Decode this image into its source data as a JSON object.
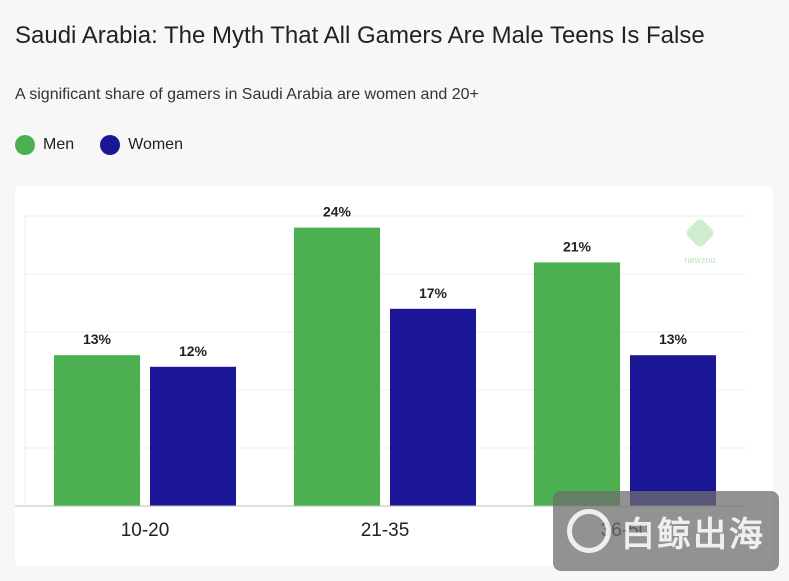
{
  "header": {
    "title": "Saudi Arabia: The Myth That All Gamers Are Male Teens Is False",
    "subtitle": "A significant share of gamers in Saudi Arabia are women and 20+"
  },
  "legend": {
    "items": [
      {
        "label": "Men",
        "color": "#4caf50"
      },
      {
        "label": "Women",
        "color": "#1b1696"
      }
    ]
  },
  "logo": {
    "text": "newzoo"
  },
  "watermark": {
    "text": "白鲸出海"
  },
  "chart_data": {
    "type": "bar",
    "categories": [
      "10-20",
      "21-35",
      "36-50"
    ],
    "series": [
      {
        "name": "Men",
        "values": [
          13,
          24,
          21
        ],
        "labels": [
          "13%",
          "24%",
          "21%"
        ],
        "color": "#4caf50"
      },
      {
        "name": "Women",
        "values": [
          12,
          17,
          13
        ],
        "labels": [
          "12%",
          "17%",
          "13%"
        ],
        "color": "#1b1696"
      }
    ],
    "ylim": [
      0,
      25
    ],
    "grid": true,
    "legend_position": "top-left"
  }
}
